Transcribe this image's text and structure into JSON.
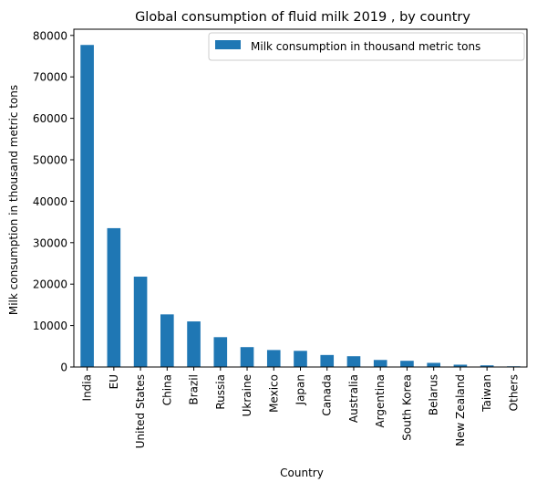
{
  "chart_data": {
    "type": "bar",
    "title": "Global consumption of fluid milk 2019 , by country",
    "xlabel": "Country",
    "ylabel": "Milk consumption in thousand metric tons",
    "categories": [
      "India",
      "EU",
      "United States",
      "China",
      "Brazil",
      "Russia",
      "Ukraine",
      "Mexico",
      "Japan",
      "Canada",
      "Australia",
      "Argentina",
      "South Korea",
      "Belarus",
      "New Zealand",
      "Taiwan",
      "Others"
    ],
    "series": [
      {
        "name": "Milk consumption in thousand metric tons",
        "color": "#1f77b4",
        "values": [
          77700,
          33500,
          21800,
          12700,
          11000,
          7200,
          4800,
          4100,
          3900,
          2900,
          2600,
          1700,
          1500,
          1000,
          560,
          400,
          170
        ]
      }
    ],
    "ylim": [
      0,
      81500
    ],
    "yticks": [
      0,
      10000,
      20000,
      30000,
      40000,
      50000,
      60000,
      70000,
      80000
    ],
    "grid": false,
    "legend_position": "top-right"
  }
}
